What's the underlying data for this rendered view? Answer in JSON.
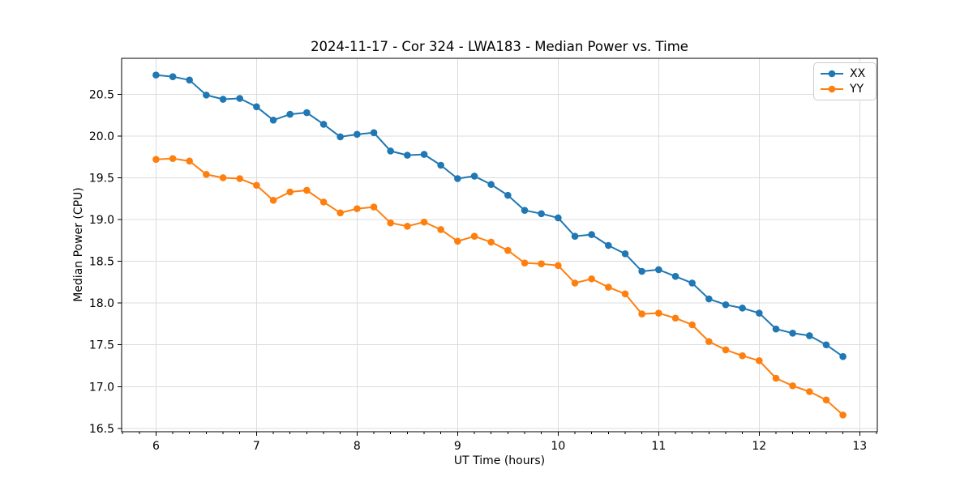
{
  "chart_data": {
    "type": "line",
    "title": "2024-11-17 - Cor 324 - LWA183 - Median Power vs. Time",
    "xlabel": "UT Time (hours)",
    "ylabel": "Median Power (CPU)",
    "x": [
      6.0,
      6.167,
      6.333,
      6.5,
      6.667,
      6.833,
      7.0,
      7.167,
      7.333,
      7.5,
      7.667,
      7.833,
      8.0,
      8.167,
      8.333,
      8.5,
      8.667,
      8.833,
      9.0,
      9.167,
      9.333,
      9.5,
      9.667,
      9.833,
      10.0,
      10.167,
      10.333,
      10.5,
      10.667,
      10.833,
      11.0,
      11.167,
      11.333,
      11.5,
      11.667,
      11.833,
      12.0,
      12.167,
      12.333,
      12.5,
      12.667,
      12.833
    ],
    "series": [
      {
        "name": "XX",
        "color": "#1f77b4",
        "marker": "o",
        "values": [
          20.73,
          20.71,
          20.67,
          20.49,
          20.44,
          20.45,
          20.35,
          20.19,
          20.26,
          20.28,
          20.14,
          19.99,
          20.02,
          20.04,
          19.82,
          19.77,
          19.78,
          19.65,
          19.49,
          19.52,
          19.42,
          19.29,
          19.11,
          19.07,
          19.02,
          18.8,
          18.82,
          18.69,
          18.59,
          18.38,
          18.4,
          18.32,
          18.24,
          18.05,
          17.98,
          17.94,
          17.88,
          17.69,
          17.64,
          17.61,
          17.5,
          17.36
        ]
      },
      {
        "name": "YY",
        "color": "#ff7f0e",
        "marker": "o",
        "values": [
          19.72,
          19.73,
          19.7,
          19.54,
          19.5,
          19.49,
          19.41,
          19.23,
          19.33,
          19.35,
          19.21,
          19.08,
          19.13,
          19.15,
          18.96,
          18.92,
          18.97,
          18.88,
          18.74,
          18.8,
          18.73,
          18.63,
          18.48,
          18.47,
          18.45,
          18.24,
          18.29,
          18.19,
          18.11,
          17.87,
          17.88,
          17.82,
          17.74,
          17.54,
          17.44,
          17.37,
          17.31,
          17.1,
          17.01,
          16.94,
          16.84,
          16.66
        ]
      }
    ],
    "xlim": [
      5.658,
      13.175
    ],
    "ylim": [
      16.46,
      20.93
    ],
    "xticks": {
      "values": [
        6,
        7,
        8,
        9,
        10,
        11,
        12,
        13
      ],
      "labels": [
        "6",
        "7",
        "8",
        "9",
        "10",
        "11",
        "12",
        "13"
      ]
    },
    "yticks": {
      "values": [
        16.5,
        17.0,
        17.5,
        18.0,
        18.5,
        19.0,
        19.5,
        20.0,
        20.5
      ],
      "labels": [
        "16.5",
        "17.0",
        "17.5",
        "18.0",
        "18.5",
        "19.0",
        "19.5",
        "20.0",
        "20.5"
      ]
    },
    "x_minor_tick_step": 0.16667,
    "grid": true,
    "grid_color": "#dcdcdc",
    "legend_position": "upper right"
  }
}
